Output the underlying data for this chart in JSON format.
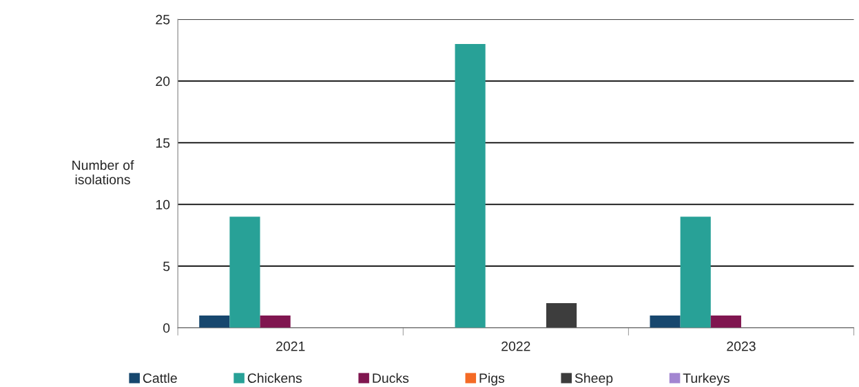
{
  "chart_data": {
    "type": "bar",
    "ylabel": "Number of\nisolations",
    "categories": [
      "2021",
      "2022",
      "2023"
    ],
    "series": [
      {
        "name": "Cattle",
        "color": "#17476e",
        "values": [
          1,
          0,
          1
        ]
      },
      {
        "name": "Chickens",
        "color": "#28a197",
        "values": [
          9,
          23,
          9
        ]
      },
      {
        "name": "Ducks",
        "color": "#801650",
        "values": [
          1,
          0,
          1
        ]
      },
      {
        "name": "Pigs",
        "color": "#f46a25",
        "values": [
          0,
          0,
          0
        ]
      },
      {
        "name": "Sheep",
        "color": "#3d3d3d",
        "values": [
          0,
          2,
          0
        ]
      },
      {
        "name": "Turkeys",
        "color": "#a285d1",
        "values": [
          0,
          0,
          0
        ]
      }
    ],
    "ylim": [
      0,
      25
    ],
    "yticks": [
      0,
      5,
      10,
      15,
      20,
      25
    ],
    "grid": "y",
    "legend": "bottom"
  }
}
